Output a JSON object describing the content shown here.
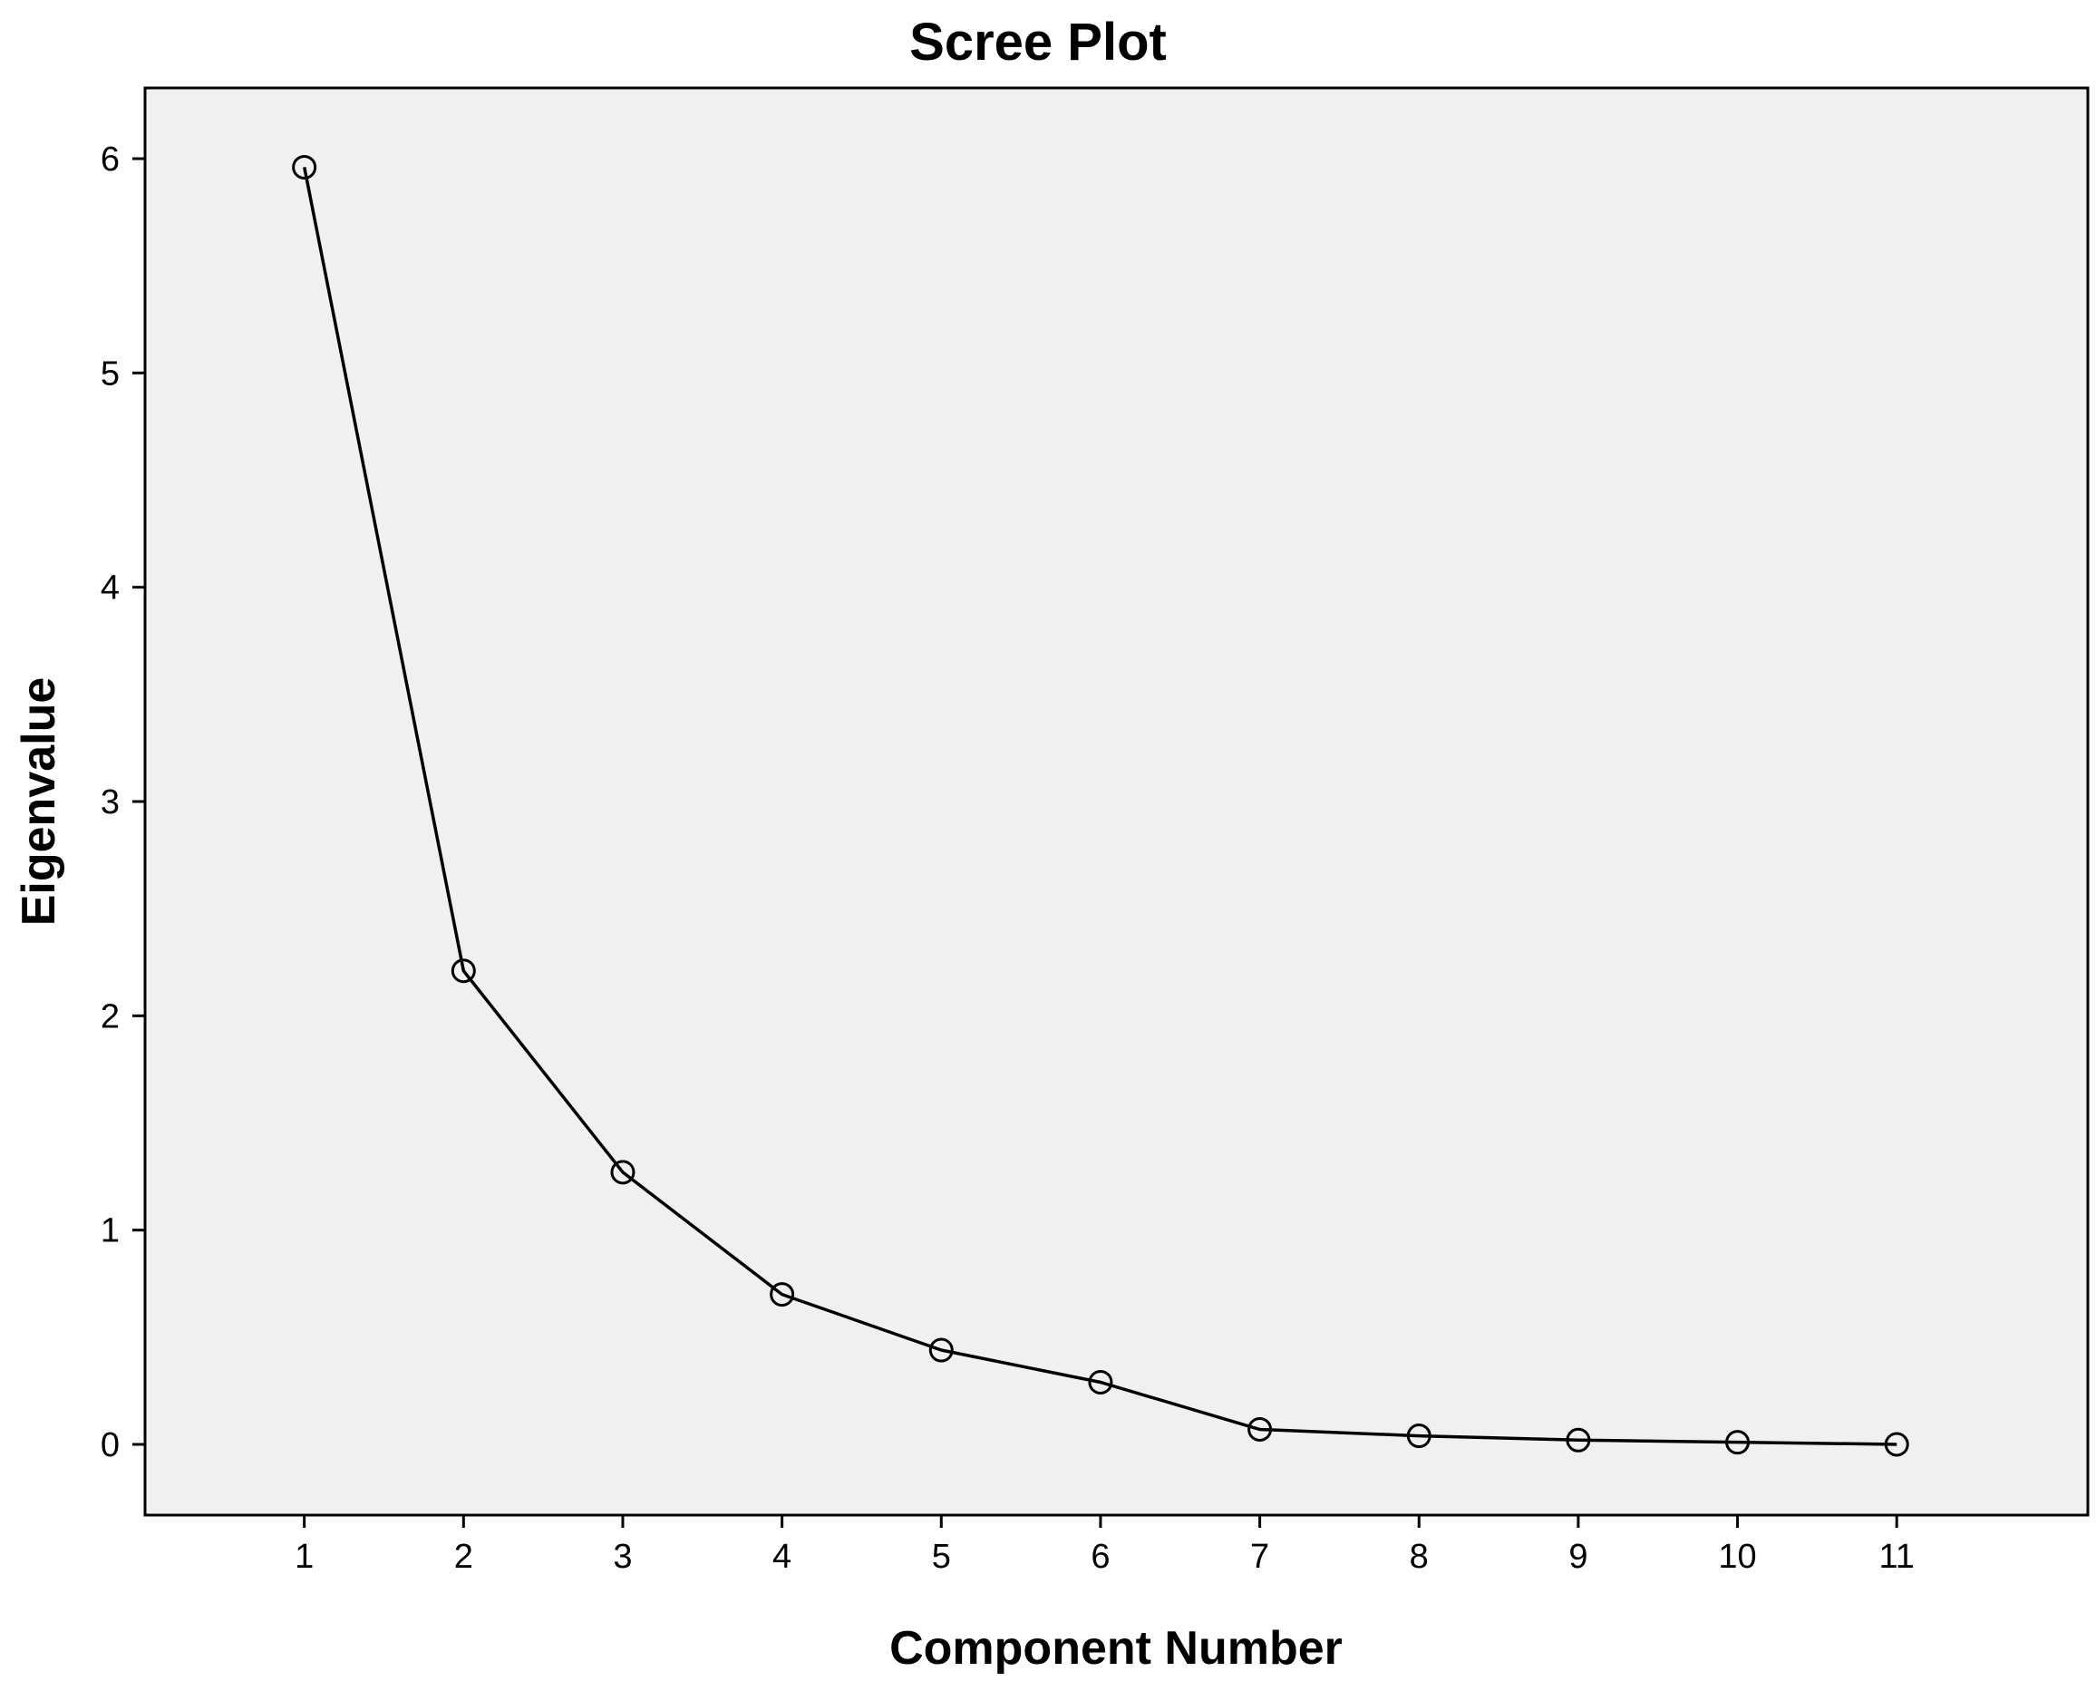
{
  "chart_data": {
    "type": "line",
    "title": "Scree Plot",
    "xlabel": "Component Number",
    "ylabel": "Eigenvalue",
    "x": [
      1,
      2,
      3,
      4,
      5,
      6,
      7,
      8,
      9,
      10,
      11
    ],
    "series": [
      {
        "values": [
          5.96,
          2.21,
          1.27,
          0.7,
          0.44,
          0.29,
          0.07,
          0.04,
          0.02,
          0.01,
          0.0
        ]
      }
    ],
    "xticks": [
      "1",
      "2",
      "3",
      "4",
      "5",
      "6",
      "7",
      "8",
      "9",
      "10",
      "11"
    ],
    "yticks": [
      "0",
      "1",
      "2",
      "3",
      "4",
      "5",
      "6"
    ],
    "xlim": [
      0,
      12.2
    ],
    "ylim": [
      -0.33,
      6.33
    ],
    "grid": false,
    "marker": "open-circle",
    "colors": {
      "plot_background": "#f0f0f0",
      "line": "#000000",
      "frame": "#000000"
    }
  }
}
